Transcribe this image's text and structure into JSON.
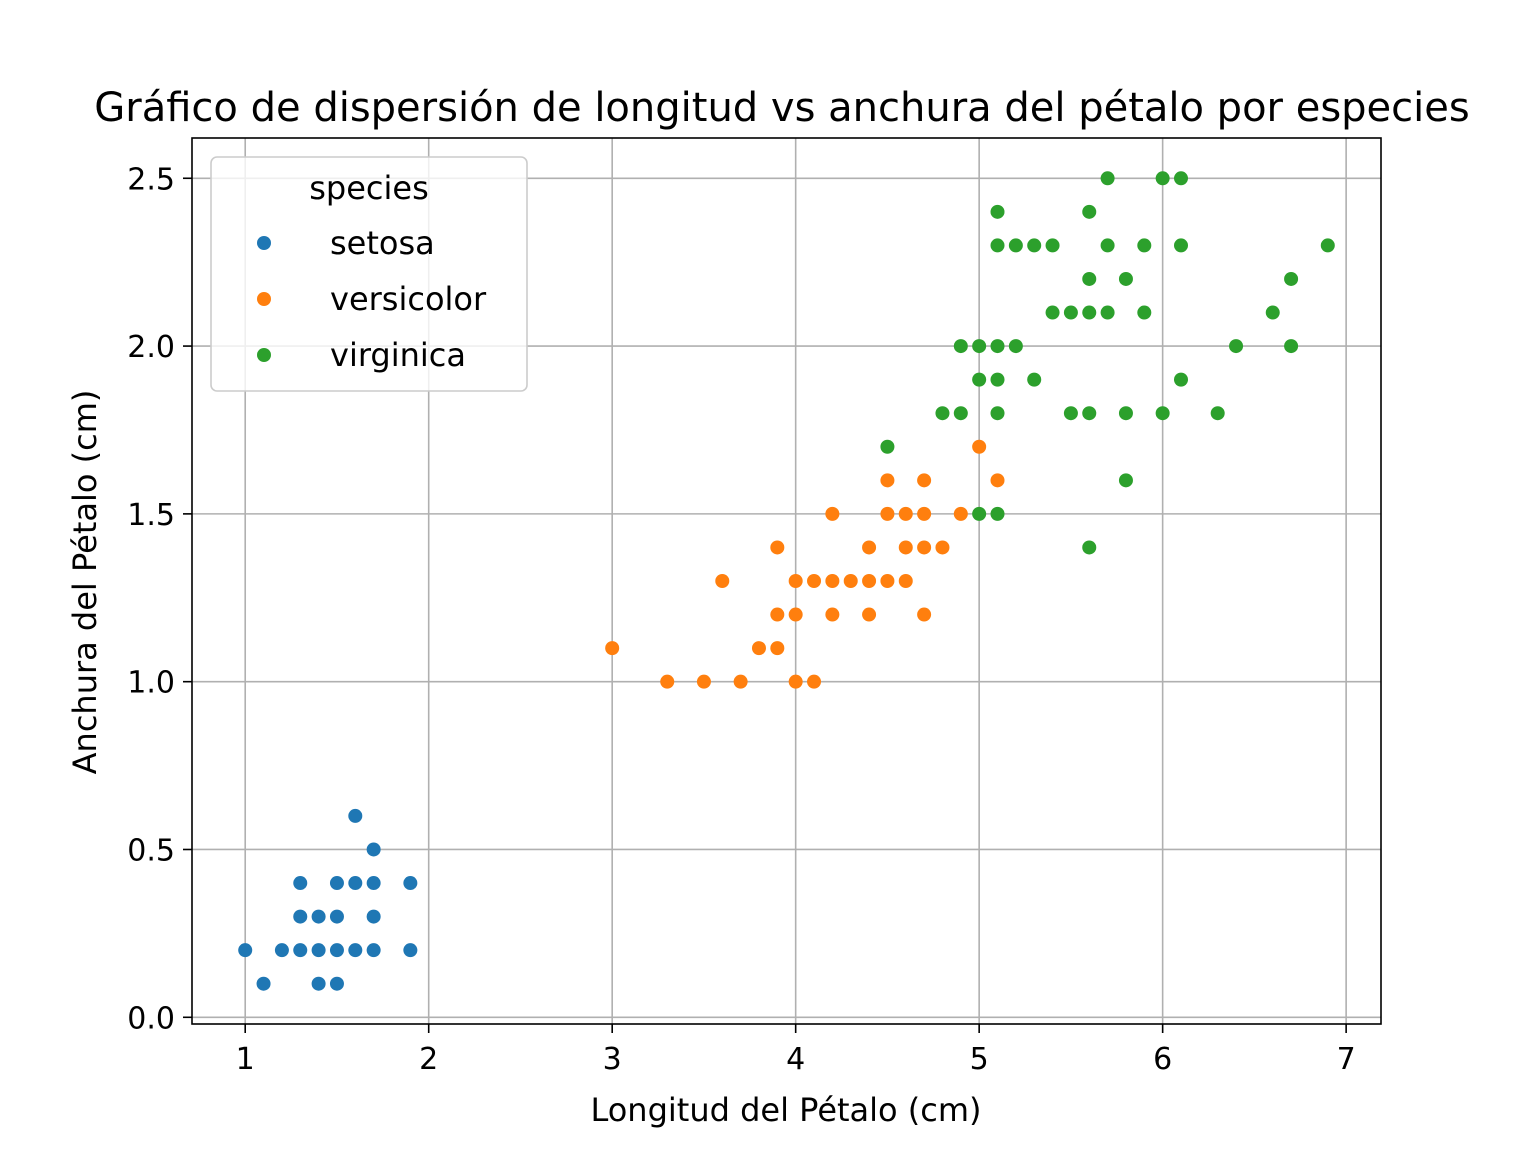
{
  "chart_data": {
    "type": "scatter",
    "title": "Gráfico de dispersión de longitud vs anchura del pétalo por especies",
    "xlabel": "Longitud del Pétalo (cm)",
    "ylabel": "Anchura del Pétalo (cm)",
    "xlim": [
      0.71,
      7.19
    ],
    "ylim": [
      -0.02,
      2.62
    ],
    "x_ticks": [
      1,
      2,
      3,
      4,
      5,
      6,
      7
    ],
    "x_tick_labels": [
      "1",
      "2",
      "3",
      "4",
      "5",
      "6",
      "7"
    ],
    "y_ticks": [
      0.0,
      0.5,
      1.0,
      1.5,
      2.0,
      2.5
    ],
    "y_tick_labels": [
      "0.0",
      "0.5",
      "1.0",
      "1.5",
      "2.0",
      "2.5"
    ],
    "grid": true,
    "legend": {
      "title": "species",
      "placement": "top-left"
    },
    "series": [
      {
        "name": "setosa",
        "color": "#1f77b4",
        "points": [
          [
            1.0,
            0.2
          ],
          [
            1.1,
            0.1
          ],
          [
            1.2,
            0.2
          ],
          [
            1.3,
            0.2
          ],
          [
            1.3,
            0.3
          ],
          [
            1.3,
            0.4
          ],
          [
            1.4,
            0.1
          ],
          [
            1.4,
            0.2
          ],
          [
            1.4,
            0.3
          ],
          [
            1.5,
            0.1
          ],
          [
            1.5,
            0.2
          ],
          [
            1.5,
            0.3
          ],
          [
            1.5,
            0.4
          ],
          [
            1.6,
            0.2
          ],
          [
            1.6,
            0.4
          ],
          [
            1.6,
            0.6
          ],
          [
            1.7,
            0.2
          ],
          [
            1.7,
            0.3
          ],
          [
            1.7,
            0.4
          ],
          [
            1.7,
            0.5
          ],
          [
            1.9,
            0.2
          ],
          [
            1.9,
            0.4
          ]
        ]
      },
      {
        "name": "versicolor",
        "color": "#ff7f0e",
        "points": [
          [
            3.0,
            1.1
          ],
          [
            3.3,
            1.0
          ],
          [
            3.5,
            1.0
          ],
          [
            3.6,
            1.3
          ],
          [
            3.7,
            1.0
          ],
          [
            3.8,
            1.1
          ],
          [
            3.9,
            1.1
          ],
          [
            3.9,
            1.2
          ],
          [
            3.9,
            1.4
          ],
          [
            4.0,
            1.0
          ],
          [
            4.0,
            1.2
          ],
          [
            4.0,
            1.3
          ],
          [
            4.1,
            1.0
          ],
          [
            4.1,
            1.3
          ],
          [
            4.2,
            1.2
          ],
          [
            4.2,
            1.3
          ],
          [
            4.2,
            1.5
          ],
          [
            4.3,
            1.3
          ],
          [
            4.4,
            1.2
          ],
          [
            4.4,
            1.3
          ],
          [
            4.4,
            1.4
          ],
          [
            4.5,
            1.3
          ],
          [
            4.5,
            1.5
          ],
          [
            4.5,
            1.6
          ],
          [
            4.6,
            1.3
          ],
          [
            4.6,
            1.4
          ],
          [
            4.6,
            1.5
          ],
          [
            4.7,
            1.2
          ],
          [
            4.7,
            1.4
          ],
          [
            4.7,
            1.5
          ],
          [
            4.7,
            1.6
          ],
          [
            4.8,
            1.4
          ],
          [
            4.9,
            1.5
          ],
          [
            5.0,
            1.7
          ],
          [
            5.1,
            1.6
          ]
        ]
      },
      {
        "name": "virginica",
        "color": "#2ca02c",
        "points": [
          [
            4.5,
            1.7
          ],
          [
            4.8,
            1.8
          ],
          [
            4.9,
            1.8
          ],
          [
            4.9,
            2.0
          ],
          [
            5.0,
            1.5
          ],
          [
            5.0,
            1.9
          ],
          [
            5.0,
            2.0
          ],
          [
            5.1,
            1.5
          ],
          [
            5.1,
            1.8
          ],
          [
            5.1,
            1.9
          ],
          [
            5.1,
            2.0
          ],
          [
            5.1,
            2.3
          ],
          [
            5.1,
            2.4
          ],
          [
            5.2,
            2.0
          ],
          [
            5.2,
            2.3
          ],
          [
            5.3,
            1.9
          ],
          [
            5.3,
            2.3
          ],
          [
            5.4,
            2.1
          ],
          [
            5.4,
            2.3
          ],
          [
            5.5,
            1.8
          ],
          [
            5.5,
            2.1
          ],
          [
            5.6,
            1.4
          ],
          [
            5.6,
            1.8
          ],
          [
            5.6,
            2.1
          ],
          [
            5.6,
            2.2
          ],
          [
            5.6,
            2.4
          ],
          [
            5.7,
            2.1
          ],
          [
            5.7,
            2.3
          ],
          [
            5.7,
            2.5
          ],
          [
            5.8,
            1.6
          ],
          [
            5.8,
            1.8
          ],
          [
            5.8,
            2.2
          ],
          [
            5.9,
            2.1
          ],
          [
            5.9,
            2.3
          ],
          [
            6.0,
            1.8
          ],
          [
            6.0,
            2.5
          ],
          [
            6.1,
            1.9
          ],
          [
            6.1,
            2.3
          ],
          [
            6.1,
            2.5
          ],
          [
            6.3,
            1.8
          ],
          [
            6.4,
            2.0
          ],
          [
            6.6,
            2.1
          ],
          [
            6.7,
            2.0
          ],
          [
            6.7,
            2.2
          ],
          [
            6.9,
            2.3
          ]
        ]
      }
    ]
  }
}
